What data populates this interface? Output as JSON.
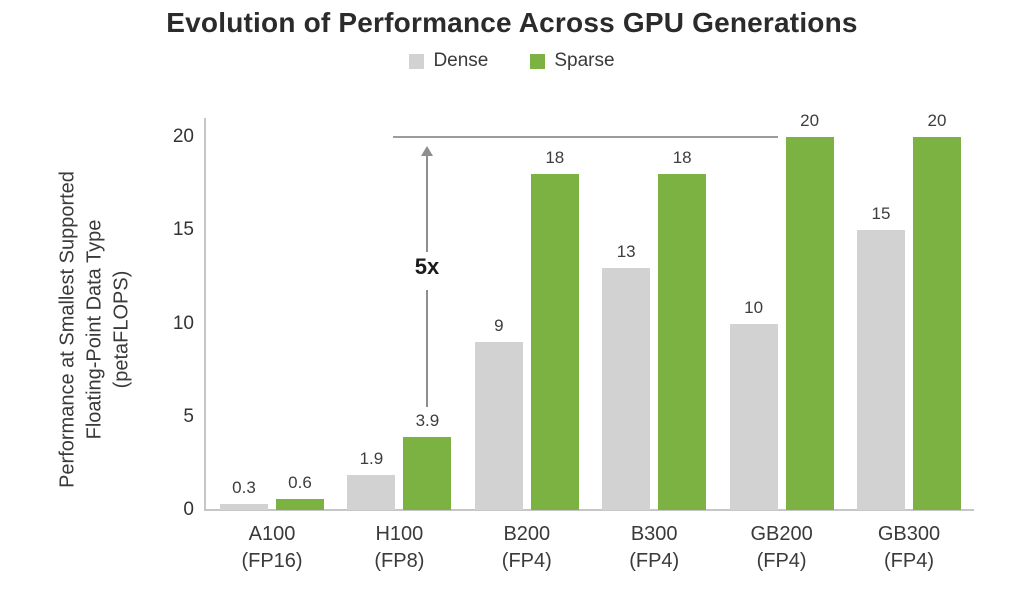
{
  "chart_data": {
    "type": "bar",
    "title": "Evolution of Performance Across GPU Generations",
    "categories": [
      "A100",
      "H100",
      "B200",
      "B300",
      "GB200",
      "GB300"
    ],
    "category_subtitles": [
      "(FP16)",
      "(FP8)",
      "(FP4)",
      "(FP4)",
      "(FP4)",
      "(FP4)"
    ],
    "series": [
      {
        "name": "Dense",
        "color": "#d2d2d2",
        "values": [
          0.3,
          1.9,
          9,
          13,
          10,
          15
        ],
        "labels": [
          "0.3",
          "1.9",
          "9",
          "13",
          "10",
          "15"
        ]
      },
      {
        "name": "Sparse",
        "color": "#7bb241",
        "values": [
          0.6,
          3.9,
          18,
          18,
          20,
          20
        ],
        "labels": [
          "0.6",
          "3.9",
          "18",
          "18",
          "20",
          "20"
        ]
      }
    ],
    "ylabel": "Performance at Smallest Supported Floating-Point Data Type (petaFLOPS)",
    "ylabel_lines": [
      "Performance at Smallest Supported",
      "Floating-Point Data Type",
      "(petaFLOPS)"
    ],
    "xlabel": "",
    "yticks": [
      0,
      5,
      10,
      15,
      20
    ],
    "ylim": [
      0,
      20
    ],
    "grid": false,
    "legend_position": "top",
    "annotation": {
      "text": "5x",
      "line_level": 20,
      "at_category": "H100",
      "at_series": "Sparse"
    }
  },
  "colors": {
    "dense": "#d2d2d2",
    "sparse": "#7bb241",
    "axis": "#c6c6c6",
    "annotation": "#8e8e8e",
    "text_dark": "#2b2b2b"
  }
}
